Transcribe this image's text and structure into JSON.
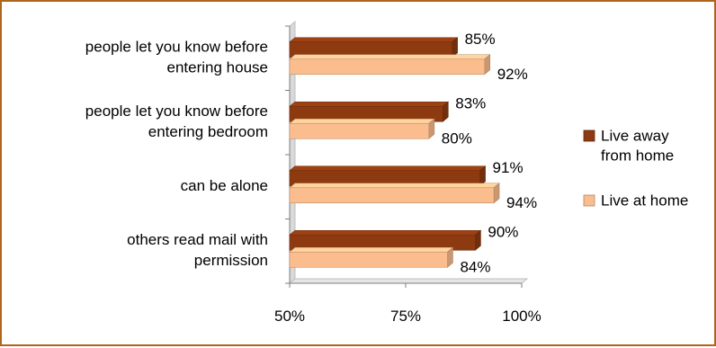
{
  "chart_data": {
    "type": "bar",
    "orientation": "horizontal",
    "style": "3d",
    "categories": [
      [
        "people let you know before",
        "entering house"
      ],
      [
        "people let you know before",
        "entering bedroom"
      ],
      [
        "can be alone"
      ],
      [
        "others read mail with",
        "permission"
      ]
    ],
    "series": [
      {
        "name": "Live away from home",
        "legend_lines": [
          "Live away",
          "from home"
        ],
        "color": "#8e3a10",
        "values": [
          85,
          83,
          91,
          90
        ],
        "labels": [
          "85%",
          "83%",
          "91%",
          "90%"
        ]
      },
      {
        "name": "Live at home",
        "legend_lines": [
          "Live at home"
        ],
        "color": "#fbbd8e",
        "values": [
          92,
          80,
          94,
          84
        ],
        "labels": [
          "92%",
          "80%",
          "94%",
          "84%"
        ]
      }
    ],
    "xlim": [
      50,
      100
    ],
    "xticks": [
      50,
      75,
      100
    ],
    "xtick_labels": [
      "50%",
      "75%",
      "100%"
    ],
    "legend_position": "right",
    "grid": false
  },
  "colors": {
    "frame": "#b0651d",
    "series_dark": "#8e3a10",
    "series_light": "#fbbd8e"
  }
}
